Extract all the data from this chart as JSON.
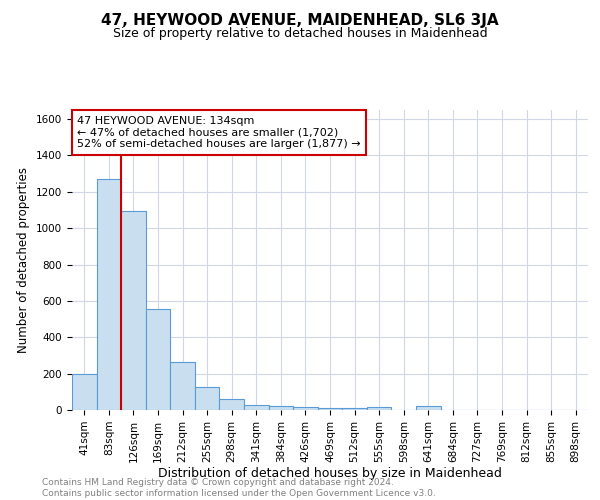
{
  "title": "47, HEYWOOD AVENUE, MAIDENHEAD, SL6 3JA",
  "subtitle": "Size of property relative to detached houses in Maidenhead",
  "xlabel": "Distribution of detached houses by size in Maidenhead",
  "ylabel": "Number of detached properties",
  "bin_labels": [
    "41sqm",
    "83sqm",
    "126sqm",
    "169sqm",
    "212sqm",
    "255sqm",
    "298sqm",
    "341sqm",
    "384sqm",
    "426sqm",
    "469sqm",
    "512sqm",
    "555sqm",
    "598sqm",
    "641sqm",
    "684sqm",
    "727sqm",
    "769sqm",
    "812sqm",
    "855sqm",
    "898sqm"
  ],
  "bar_heights": [
    200,
    1270,
    1095,
    555,
    265,
    125,
    60,
    30,
    20,
    15,
    10,
    10,
    15,
    0,
    20,
    0,
    0,
    0,
    0,
    0,
    0
  ],
  "bar_color": "#c9dff0",
  "bar_edge_color": "#5b9bd5",
  "grid_color": "#d0d8e8",
  "vline_color": "#cc0000",
  "annotation_text": "47 HEYWOOD AVENUE: 134sqm\n← 47% of detached houses are smaller (1,702)\n52% of semi-detached houses are larger (1,877) →",
  "annotation_box_color": "#ffffff",
  "annotation_box_edge": "#cc0000",
  "ylim": [
    0,
    1650
  ],
  "yticks": [
    0,
    200,
    400,
    600,
    800,
    1000,
    1200,
    1400,
    1600
  ],
  "footer": "Contains HM Land Registry data © Crown copyright and database right 2024.\nContains public sector information licensed under the Open Government Licence v3.0.",
  "title_fontsize": 11,
  "subtitle_fontsize": 9,
  "xlabel_fontsize": 9,
  "ylabel_fontsize": 8.5,
  "annotation_fontsize": 8,
  "footer_fontsize": 6.5,
  "tick_fontsize": 7.5
}
